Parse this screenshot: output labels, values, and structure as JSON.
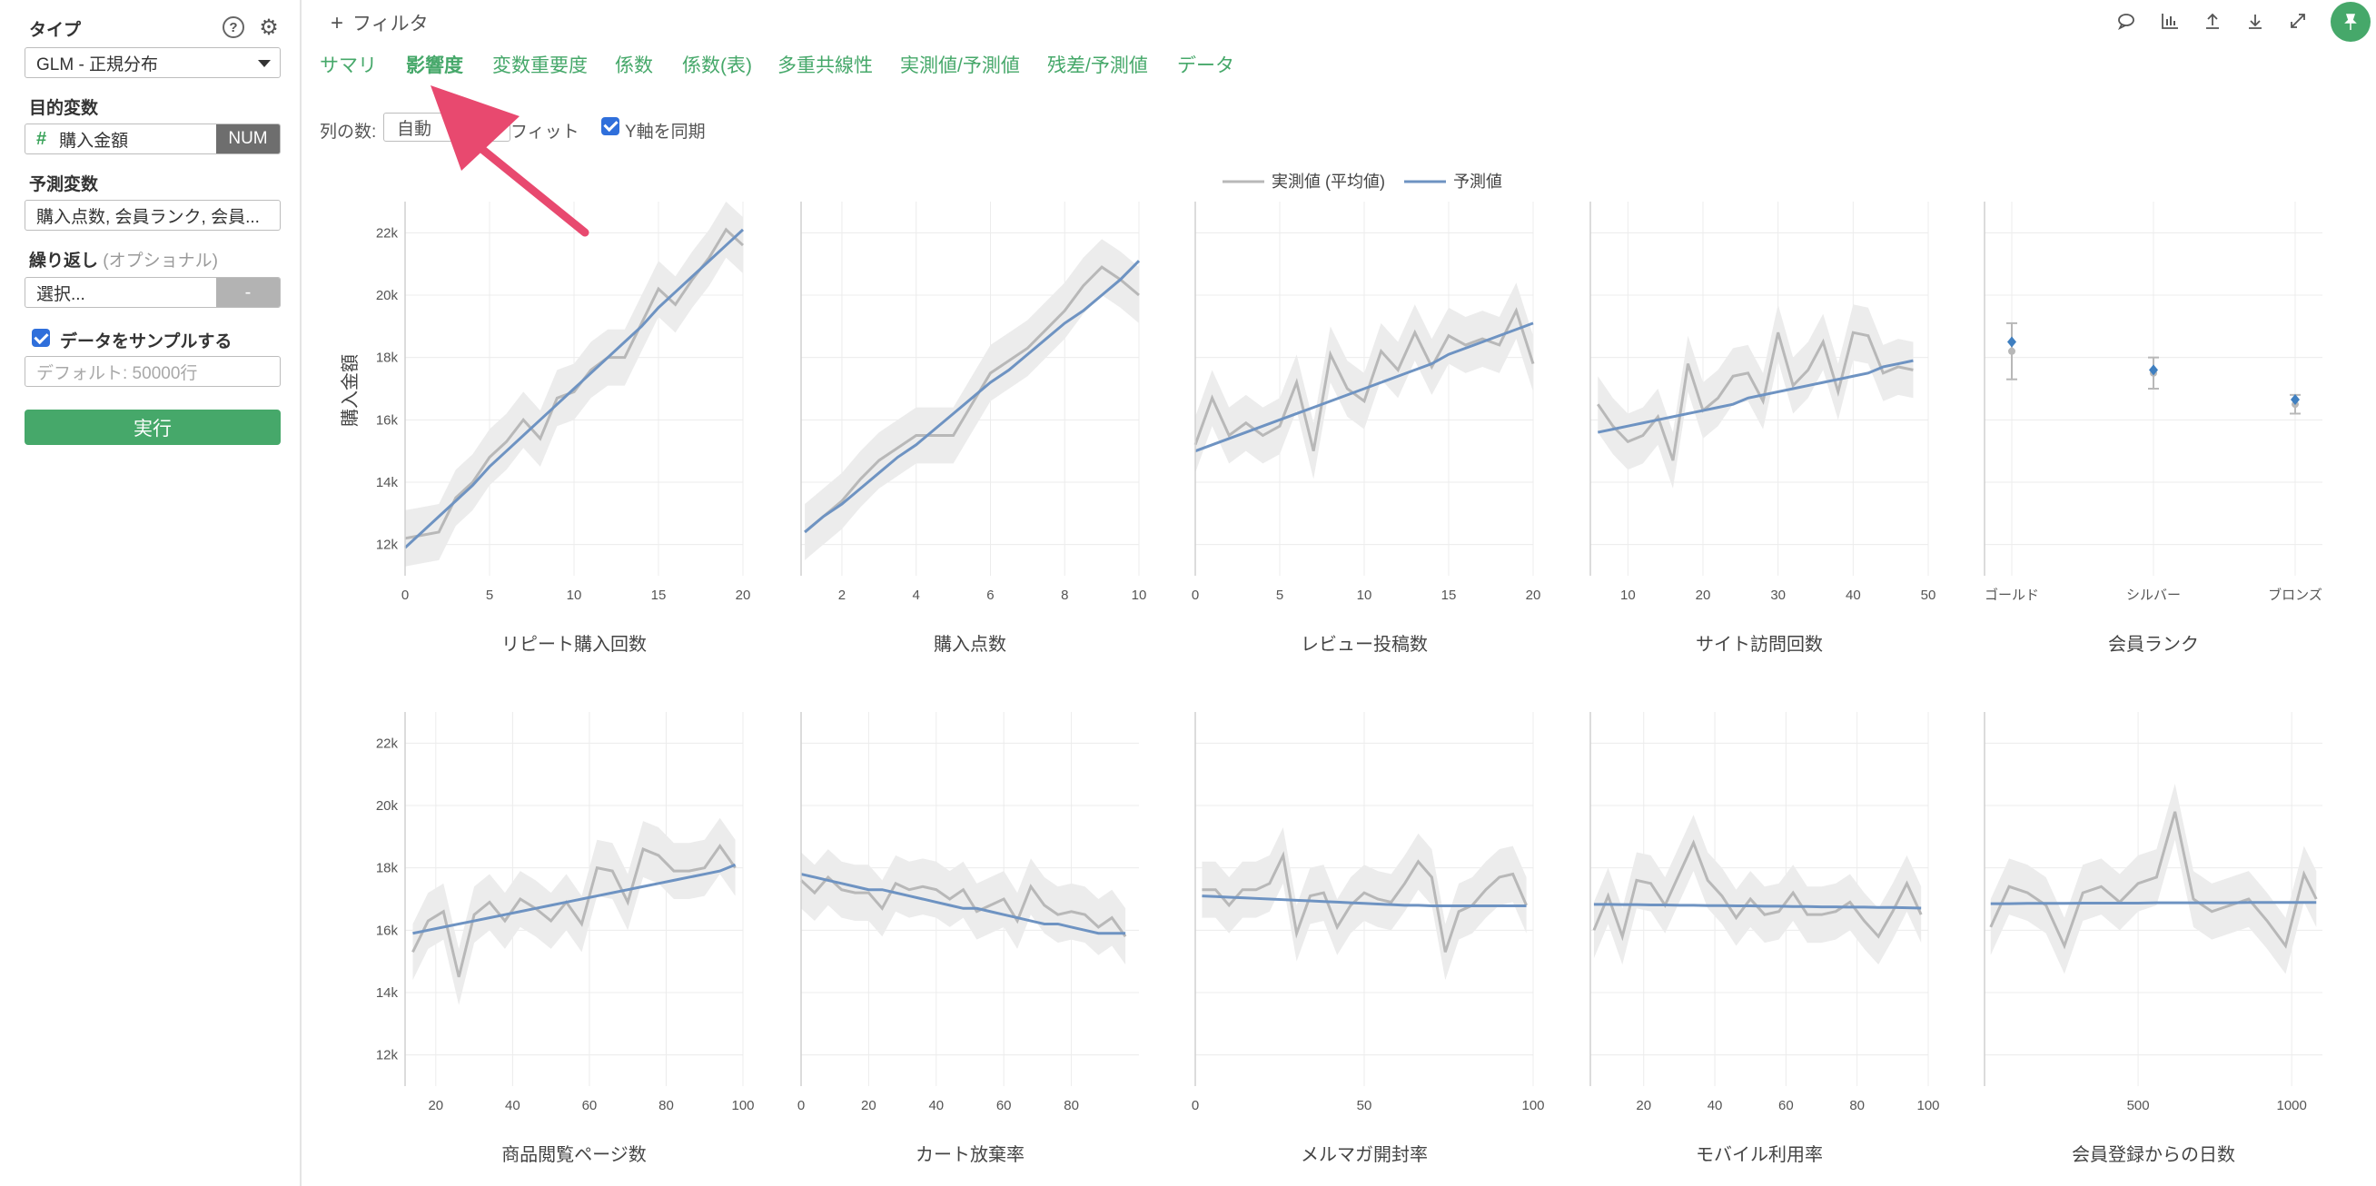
{
  "sidebar": {
    "type_label": "タイプ",
    "type_value": "GLM - 正規分布",
    "target_label": "目的変数",
    "target_value": "購入金額",
    "target_tag": "NUM",
    "predictors_label": "予測変数",
    "predictors_value": "購入点数, 会員ランク, 会員...",
    "repeat_label": "繰り返し",
    "repeat_optional": "(オプショナル)",
    "repeat_value": "選択...",
    "repeat_tag": "-",
    "sample_label": "データをサンプルする",
    "sample_placeholder": "デフォルト: 50000行",
    "run_label": "実行",
    "help_icon": "?",
    "settings_icon": "⚙"
  },
  "main": {
    "filter_label": "フィルタ",
    "tabs": [
      "サマリ",
      "影響度",
      "変数重要度",
      "係数",
      "係数(表)",
      "多重共線性",
      "実測値/予測値",
      "残差/予測値",
      "データ"
    ],
    "active_tab": "影響度",
    "cols_label": "列の数:",
    "cols_value": "自動",
    "fit_label": "フィット",
    "sync_label": "Y軸を同期"
  },
  "colors": {
    "accent": "#46a86a",
    "actual": "#b8b8b8",
    "predicted": "#6e93c2",
    "band": "#ececec",
    "arrow": "#e8496f"
  },
  "chart_data": {
    "type": "line",
    "legend": [
      "実測値 (平均値)",
      "予測値"
    ],
    "legend_position": "top-center",
    "ylabel": "購入金額",
    "ylim": [
      11000,
      23000
    ],
    "yticks": [
      12000,
      14000,
      16000,
      18000,
      20000,
      22000
    ],
    "ytick_labels": [
      "12k",
      "14k",
      "16k",
      "18k",
      "20k",
      "22k"
    ],
    "grid": true,
    "panels": [
      {
        "title": "リピート購入回数",
        "xlim": [
          0,
          20
        ],
        "xticks": [
          0,
          5,
          10,
          15,
          20
        ],
        "x": [
          0,
          1,
          2,
          3,
          4,
          5,
          6,
          7,
          8,
          9,
          10,
          11,
          12,
          13,
          14,
          15,
          16,
          17,
          18,
          19,
          20
        ],
        "actual": [
          12200,
          12300,
          12400,
          13500,
          14000,
          14800,
          15300,
          16000,
          15400,
          16700,
          16900,
          17600,
          18000,
          18000,
          19100,
          20200,
          19700,
          20500,
          21200,
          22100,
          21600
        ],
        "pred": [
          11900,
          12400,
          12900,
          13400,
          13900,
          14500,
          15000,
          15500,
          16000,
          16500,
          17000,
          17500,
          18000,
          18500,
          19000,
          19600,
          20100,
          20600,
          21100,
          21600,
          22100
        ]
      },
      {
        "title": "購入点数",
        "xlim": [
          0.9,
          10
        ],
        "xticks": [
          2,
          4,
          6,
          8,
          10
        ],
        "x": [
          1,
          1.5,
          2,
          2.5,
          3,
          3.5,
          4,
          4.5,
          5,
          5.5,
          6,
          6.5,
          7,
          7.5,
          8,
          8.5,
          9,
          9.5,
          10
        ],
        "actual": [
          12400,
          12900,
          13400,
          14100,
          14700,
          15100,
          15500,
          15500,
          15500,
          16500,
          17500,
          17900,
          18300,
          18900,
          19500,
          20300,
          20900,
          20500,
          20000
        ],
        "pred": [
          12400,
          12900,
          13300,
          13800,
          14300,
          14800,
          15200,
          15700,
          16200,
          16700,
          17200,
          17600,
          18100,
          18600,
          19100,
          19500,
          20000,
          20500,
          21100
        ]
      },
      {
        "title": "レビュー投稿数",
        "xlim": [
          0,
          20
        ],
        "xticks": [
          0,
          5,
          10,
          15,
          20
        ],
        "x": [
          0,
          1,
          2,
          3,
          4,
          5,
          6,
          7,
          8,
          9,
          10,
          11,
          12,
          13,
          14,
          15,
          16,
          17,
          18,
          19,
          20
        ],
        "actual": [
          15200,
          16700,
          15500,
          15900,
          15500,
          15800,
          17200,
          15000,
          18100,
          17000,
          16600,
          18200,
          17600,
          18800,
          17700,
          18700,
          18400,
          18600,
          18400,
          19500,
          17800
        ],
        "pred": [
          15000,
          15200,
          15400,
          15600,
          15800,
          16000,
          16200,
          16400,
          16600,
          16800,
          17000,
          17200,
          17400,
          17600,
          17800,
          18100,
          18300,
          18500,
          18700,
          18900,
          19100
        ]
      },
      {
        "title": "サイト訪問回数",
        "xlim": [
          5,
          50
        ],
        "xticks": [
          10,
          20,
          30,
          40,
          50
        ],
        "x": [
          6,
          8,
          10,
          12,
          14,
          16,
          18,
          20,
          22,
          24,
          26,
          28,
          30,
          32,
          34,
          36,
          38,
          40,
          42,
          44,
          46,
          48
        ],
        "actual": [
          16500,
          15800,
          15300,
          15500,
          16100,
          14700,
          17800,
          16300,
          16700,
          17400,
          17500,
          16600,
          18800,
          17100,
          17600,
          18500,
          16900,
          18800,
          18700,
          17500,
          17700,
          17600
        ],
        "pred": [
          15600,
          15700,
          15800,
          15900,
          16000,
          16100,
          16200,
          16300,
          16400,
          16500,
          16700,
          16800,
          16900,
          17000,
          17100,
          17200,
          17300,
          17400,
          17500,
          17700,
          17800,
          17900
        ]
      },
      {
        "title": "会員ランク",
        "type": "categorical",
        "categories": [
          "ゴールド",
          "シルバー",
          "ブロンズ"
        ],
        "actual": [
          18200,
          17500,
          16500
        ],
        "actual_err": [
          900,
          500,
          300
        ],
        "pred": [
          18500,
          17600,
          16650
        ],
        "pred_err": [
          600,
          400,
          300
        ]
      },
      {
        "title": "商品閲覧ページ数",
        "xlim": [
          12,
          100
        ],
        "xticks": [
          20,
          40,
          60,
          80,
          100
        ],
        "x": [
          14,
          18,
          22,
          26,
          30,
          34,
          38,
          42,
          46,
          50,
          54,
          58,
          62,
          66,
          70,
          74,
          78,
          82,
          86,
          90,
          94,
          98
        ],
        "actual": [
          15300,
          16300,
          16600,
          14500,
          16500,
          16900,
          16300,
          17000,
          16700,
          16300,
          16900,
          16200,
          18000,
          17900,
          16900,
          18600,
          18400,
          17900,
          17900,
          18000,
          18700,
          18000
        ],
        "pred": [
          15900,
          16000,
          16100,
          16200,
          16300,
          16400,
          16500,
          16600,
          16700,
          16800,
          16900,
          17000,
          17100,
          17200,
          17300,
          17400,
          17500,
          17600,
          17700,
          17800,
          17900,
          18100
        ]
      },
      {
        "title": "カート放棄率",
        "xlim": [
          0,
          100
        ],
        "xticks": [
          0,
          20,
          40,
          60,
          80
        ],
        "x": [
          0,
          4,
          8,
          12,
          16,
          20,
          24,
          28,
          32,
          36,
          40,
          44,
          48,
          52,
          56,
          60,
          64,
          68,
          72,
          76,
          80,
          84,
          88,
          92,
          96
        ],
        "actual": [
          17600,
          17200,
          17700,
          17300,
          17200,
          17200,
          16700,
          17500,
          17300,
          17400,
          17300,
          17000,
          17300,
          16600,
          16800,
          17000,
          16300,
          17400,
          16800,
          16500,
          16600,
          16500,
          16100,
          16400,
          15800
        ],
        "pred": [
          17800,
          17700,
          17600,
          17500,
          17400,
          17300,
          17300,
          17200,
          17100,
          17000,
          16900,
          16800,
          16700,
          16700,
          16600,
          16500,
          16400,
          16300,
          16200,
          16200,
          16100,
          16000,
          15900,
          15900,
          15900
        ]
      },
      {
        "title": "メルマガ開封率",
        "xlim": [
          0,
          100
        ],
        "xticks": [
          0,
          50,
          100
        ],
        "x": [
          2,
          6,
          10,
          14,
          18,
          22,
          26,
          30,
          34,
          38,
          42,
          46,
          50,
          54,
          58,
          62,
          66,
          70,
          74,
          78,
          82,
          86,
          90,
          94,
          98
        ],
        "actual": [
          17300,
          17300,
          16800,
          17300,
          17300,
          17500,
          18400,
          15900,
          17100,
          17200,
          16100,
          16800,
          17200,
          17000,
          16900,
          17500,
          18200,
          17700,
          15300,
          16600,
          16800,
          17300,
          17700,
          17800,
          16800
        ],
        "pred": [
          17100,
          17080,
          17060,
          17040,
          17020,
          17000,
          16980,
          16960,
          16940,
          16920,
          16900,
          16880,
          16860,
          16840,
          16820,
          16800,
          16800,
          16780,
          16780,
          16780,
          16780,
          16780,
          16780,
          16780,
          16780
        ]
      },
      {
        "title": "モバイル利用率",
        "xlim": [
          5,
          100
        ],
        "xticks": [
          20,
          40,
          60,
          80,
          100
        ],
        "x": [
          6,
          10,
          14,
          18,
          22,
          26,
          30,
          34,
          38,
          42,
          46,
          50,
          54,
          58,
          62,
          66,
          70,
          74,
          78,
          82,
          86,
          90,
          94,
          98
        ],
        "actual": [
          16000,
          17100,
          15800,
          17600,
          17500,
          16800,
          17800,
          18800,
          17600,
          17100,
          16400,
          17000,
          16500,
          16600,
          17200,
          16500,
          16500,
          16600,
          16900,
          16300,
          15800,
          16600,
          17500,
          16500
        ],
        "pred": [
          16830,
          16830,
          16820,
          16820,
          16810,
          16810,
          16800,
          16800,
          16790,
          16790,
          16780,
          16780,
          16770,
          16770,
          16760,
          16760,
          16750,
          16750,
          16740,
          16740,
          16730,
          16730,
          16720,
          16710
        ]
      },
      {
        "title": "会員登録からの日数",
        "xlim": [
          0,
          1100
        ],
        "xticks": [
          500,
          1000
        ],
        "x": [
          20,
          80,
          140,
          200,
          260,
          320,
          380,
          440,
          500,
          560,
          620,
          680,
          740,
          800,
          860,
          920,
          980,
          1040,
          1080
        ],
        "actual": [
          16100,
          17400,
          17200,
          16800,
          15500,
          17200,
          17400,
          16900,
          17500,
          17700,
          19800,
          17000,
          16600,
          16800,
          17000,
          16300,
          15500,
          17800,
          17000
        ],
        "pred": [
          16850,
          16850,
          16860,
          16860,
          16860,
          16870,
          16870,
          16870,
          16870,
          16880,
          16880,
          16880,
          16880,
          16880,
          16890,
          16890,
          16890,
          16890,
          16890
        ]
      }
    ]
  }
}
